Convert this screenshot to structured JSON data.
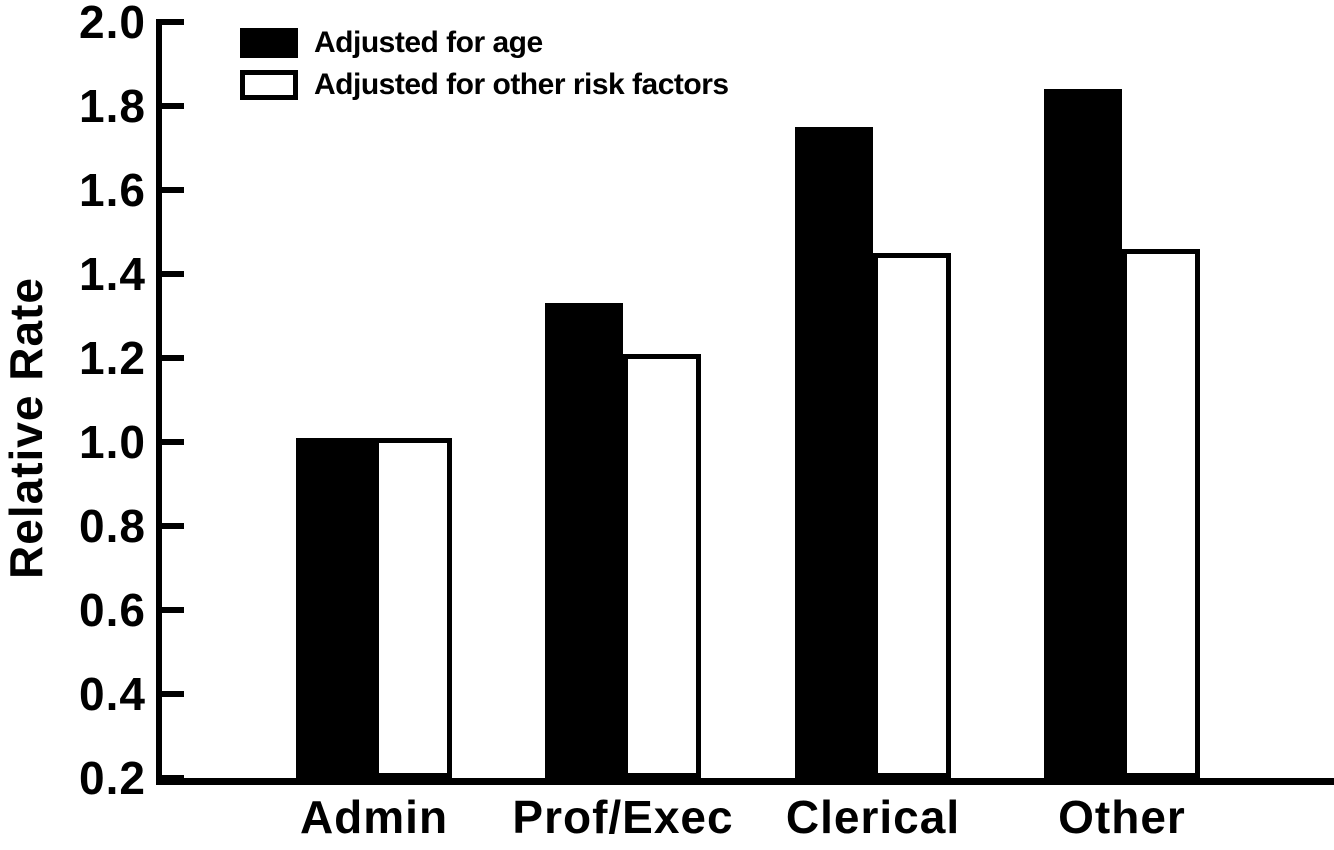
{
  "figure": {
    "background": "#ffffff",
    "ink": "#000000"
  },
  "chart_data": {
    "type": "bar",
    "title": "",
    "xlabel": "",
    "ylabel": "Relative Rate",
    "categories": [
      "Admin",
      "Prof/Exec",
      "Clerical",
      "Other"
    ],
    "series": [
      {
        "name": "Adjusted for age",
        "style": "filled",
        "color": "#000000",
        "values": [
          1.01,
          1.33,
          1.75,
          1.84
        ]
      },
      {
        "name": "Adjusted for other risk factors",
        "style": "outlined",
        "color": "#ffffff",
        "border_color": "#000000",
        "values": [
          1.01,
          1.21,
          1.45,
          1.46
        ]
      }
    ],
    "ylim": [
      0.2,
      2.0
    ],
    "yticks": [
      0.2,
      0.4,
      0.6,
      0.8,
      1.0,
      1.2,
      1.4,
      1.6,
      1.8,
      2.0
    ],
    "ytick_labels": [
      "0.2",
      "0.4",
      "0.6",
      "0.8",
      "1.0",
      "1.2",
      "1.4",
      "1.6",
      "1.8",
      "2.0"
    ],
    "grid": false,
    "legend_position": "top-left"
  }
}
